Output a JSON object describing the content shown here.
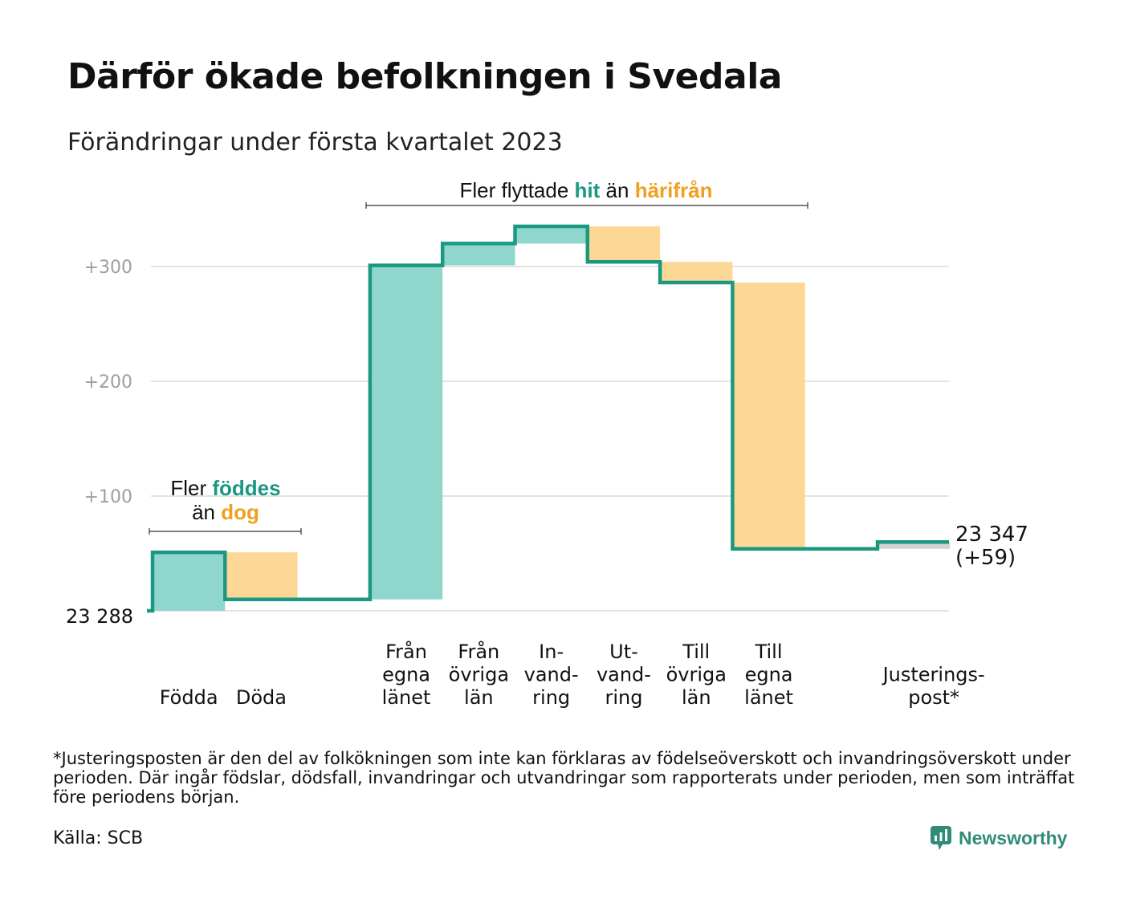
{
  "title": "Därför ökade befolkningen i Svedala",
  "subtitle": "Förändringar under första kvartalet 2023",
  "annotations": {
    "birth": {
      "line1_a": "Fler ",
      "line1_b": "föddes",
      "line2_a": "än ",
      "line2_b": "dog"
    },
    "migration": {
      "a": "Fler flyttade ",
      "b": "hit",
      "c": " än ",
      "d": "härifrån"
    }
  },
  "colors": {
    "increase": "#8fd6cc",
    "decrease": "#fcd795",
    "adjustment": "#d3d3d3",
    "line": "#1a9882",
    "grid": "#e3e3e3"
  },
  "chart_data": {
    "type": "waterfall",
    "start_value": 23288,
    "start_label": "23 288",
    "end_value": 23347,
    "end_label": "23 347",
    "end_change_label": "(+59)",
    "y_ticks": [
      {
        "value": 100,
        "label": "+100"
      },
      {
        "value": 200,
        "label": "+200"
      },
      {
        "value": 300,
        "label": "+300"
      }
    ],
    "ylim": [
      0,
      330
    ],
    "grid": true,
    "steps": [
      {
        "category": "Födda",
        "label_lines": [
          "Födda"
        ],
        "change": 51,
        "kind": "increase"
      },
      {
        "category": "Döda",
        "label_lines": [
          "Döda"
        ],
        "change": -41,
        "kind": "decrease"
      },
      {
        "category": "",
        "label_lines": [],
        "change": 0,
        "kind": "none"
      },
      {
        "category": "Från egna länet",
        "label_lines": [
          "Från",
          "egna",
          "länet"
        ],
        "change": 291,
        "kind": "increase"
      },
      {
        "category": "Från övriga län",
        "label_lines": [
          "Från",
          "övriga",
          "län"
        ],
        "change": 19,
        "kind": "increase"
      },
      {
        "category": "Invandring",
        "label_lines": [
          "In-",
          "vand-",
          "ring"
        ],
        "change": 15,
        "kind": "increase"
      },
      {
        "category": "Utvandring",
        "label_lines": [
          "Ut-",
          "vand-",
          "ring"
        ],
        "change": -31,
        "kind": "decrease"
      },
      {
        "category": "Till övriga län",
        "label_lines": [
          "Till",
          "övriga",
          "län"
        ],
        "change": -18,
        "kind": "decrease"
      },
      {
        "category": "Till egna länet",
        "label_lines": [
          "Till",
          "egna",
          "länet"
        ],
        "change": -232,
        "kind": "decrease"
      },
      {
        "category": "",
        "label_lines": [],
        "change": 0,
        "kind": "none"
      },
      {
        "category": "Justeringspost*",
        "label_lines": [
          "Justerings-",
          "post*"
        ],
        "change": 6,
        "kind": "adjustment"
      }
    ]
  },
  "footnote": "*Justeringsposten är den del av folkökningen som inte kan förklaras av födelseöverskott och invandringsöverskott under perioden. Där ingår födslar, dödsfall, invandringar och utvandringar som rapporterats under perioden, men som inträffat före periodens början.",
  "source": "Källa: SCB",
  "logo": {
    "text": "Newsworthy",
    "icon": "newsworthy-chart-bubble-icon"
  }
}
